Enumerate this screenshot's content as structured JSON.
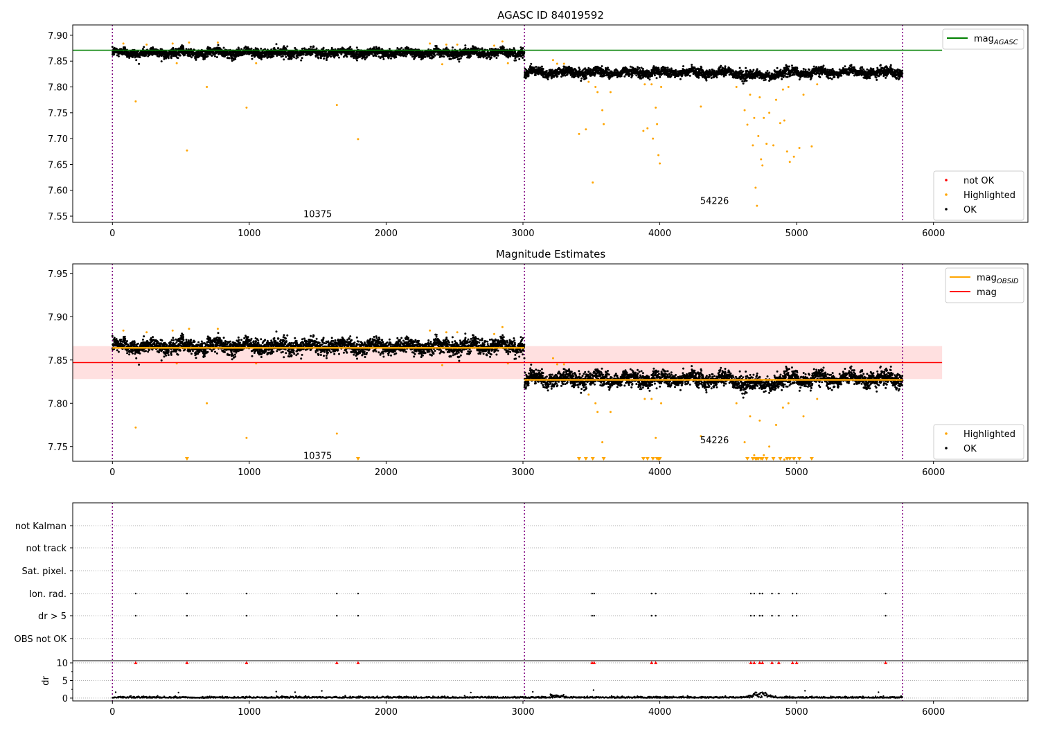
{
  "chart_data": [
    {
      "type": "scatter",
      "title": "AGASC ID 84019592",
      "xlabel": "",
      "ylabel": "",
      "xlim": [
        -290,
        6690
      ],
      "ylim": [
        7.538,
        7.92
      ],
      "xticks": [
        0,
        1000,
        2000,
        3000,
        4000,
        5000,
        6000
      ],
      "yticks": [
        7.55,
        7.6,
        7.65,
        7.7,
        7.75,
        7.8,
        7.85,
        7.9
      ],
      "obsid_boundaries": [
        0,
        3011,
        5774
      ],
      "obsid_labels": [
        {
          "text": "10375",
          "x": 1500,
          "y": 7.555
        },
        {
          "text": "54226",
          "x": 4400,
          "y": 7.58
        }
      ],
      "mag_agasc": 7.871,
      "mag_agasc_xrange": [
        -290,
        6063
      ],
      "legend_top": {
        "position": "top-right",
        "entries": [
          {
            "label": "mag",
            "sub": "AGASC",
            "color": "#008000"
          }
        ]
      },
      "legend_bottom": {
        "position": "bottom-right",
        "entries": [
          {
            "label": "not OK",
            "color": "#ff0000"
          },
          {
            "label": "Highlighted",
            "color": "#ffa500"
          },
          {
            "label": "OK",
            "color": "#000000"
          }
        ]
      }
    },
    {
      "type": "scatter",
      "title": "Magnitude Estimates",
      "xlim": [
        -290,
        6690
      ],
      "ylim": [
        7.733,
        7.961
      ],
      "xticks": [
        0,
        1000,
        2000,
        3000,
        4000,
        5000,
        6000
      ],
      "yticks": [
        7.75,
        7.8,
        7.85,
        7.9,
        7.95
      ],
      "obsid_labels": [
        {
          "text": "10375",
          "x": 1500,
          "y": 7.74
        },
        {
          "text": "54226",
          "x": 4400,
          "y": 7.758
        }
      ],
      "mag": 7.847,
      "mag_band": [
        7.828,
        7.866
      ],
      "mag_xrange": [
        -290,
        6063
      ],
      "mag_obsid": [
        {
          "x0": 0,
          "x1": 3011,
          "value": 7.864
        },
        {
          "x0": 3011,
          "x1": 5774,
          "value": 7.827
        }
      ],
      "legend_top": {
        "position": "top-right",
        "entries": [
          {
            "label": "mag",
            "sub": "OBSID",
            "color": "#ffa500"
          },
          {
            "label": "mag",
            "sub": "",
            "color": "#ff0000"
          }
        ]
      },
      "legend_bottom": {
        "position": "bottom-right",
        "entries": [
          {
            "label": "Highlighted",
            "color": "#ffa500"
          },
          {
            "label": "OK",
            "color": "#000000"
          }
        ]
      }
    },
    {
      "type": "scatter",
      "title": "",
      "flag_categories": [
        "not Kalman",
        "not track",
        "Sat. pixel.",
        "Ion. rad.",
        "dr > 5",
        "OBS not OK"
      ],
      "flagged_x": [
        170,
        545,
        980,
        1640,
        1795,
        3505,
        3520,
        3940,
        3970,
        4665,
        4690,
        4730,
        4750,
        4820,
        4870,
        4970,
        5000,
        5650
      ],
      "flags_set": [
        "Ion. rad.",
        "dr > 5"
      ],
      "dr_ylabel": "dr",
      "dr_ylim": [
        -0.8,
        10.6
      ],
      "dr_yticks": [
        0,
        5,
        10
      ],
      "xticks": [
        0,
        1000,
        2000,
        3000,
        4000,
        5000,
        6000
      ]
    }
  ],
  "series_model": {
    "segments": [
      {
        "x0": 0,
        "x1": 3011,
        "mean": 7.866,
        "sd": 0.006,
        "step": 1
      },
      {
        "x0": 3011,
        "x1": 5774,
        "mean": 7.828,
        "sd": 0.006,
        "step": 1,
        "dip": {
          "center": 4720,
          "width": 120,
          "depth": 0.008
        }
      }
    ],
    "highlighted": [
      [
        80,
        7.884
      ],
      [
        170,
        7.772
      ],
      [
        250,
        7.882
      ],
      [
        440,
        7.884
      ],
      [
        470,
        7.846
      ],
      [
        545,
        7.677
      ],
      [
        560,
        7.886
      ],
      [
        690,
        7.8
      ],
      [
        770,
        7.886
      ],
      [
        980,
        7.76
      ],
      [
        1050,
        7.846
      ],
      [
        1640,
        7.765
      ],
      [
        1795,
        7.699
      ],
      [
        2320,
        7.884
      ],
      [
        2410,
        7.844
      ],
      [
        2440,
        7.882
      ],
      [
        2520,
        7.882
      ],
      [
        2790,
        7.88
      ],
      [
        2850,
        7.888
      ],
      [
        2890,
        7.846
      ],
      [
        3220,
        7.852
      ],
      [
        3250,
        7.845
      ],
      [
        3300,
        7.845
      ],
      [
        3410,
        7.709
      ],
      [
        3460,
        7.718
      ],
      [
        3480,
        7.81
      ],
      [
        3510,
        7.615
      ],
      [
        3530,
        7.8
      ],
      [
        3545,
        7.79
      ],
      [
        3580,
        7.755
      ],
      [
        3590,
        7.728
      ],
      [
        3640,
        7.79
      ],
      [
        3880,
        7.715
      ],
      [
        3890,
        7.805
      ],
      [
        3910,
        7.72
      ],
      [
        3940,
        7.805
      ],
      [
        3950,
        7.7
      ],
      [
        3970,
        7.76
      ],
      [
        3980,
        7.728
      ],
      [
        3990,
        7.668
      ],
      [
        4000,
        7.652
      ],
      [
        4010,
        7.8
      ],
      [
        4300,
        7.762
      ],
      [
        4560,
        7.8
      ],
      [
        4620,
        7.755
      ],
      [
        4640,
        7.727
      ],
      [
        4660,
        7.785
      ],
      [
        4680,
        7.687
      ],
      [
        4690,
        7.74
      ],
      [
        4700,
        7.605
      ],
      [
        4710,
        7.57
      ],
      [
        4720,
        7.705
      ],
      [
        4730,
        7.78
      ],
      [
        4740,
        7.66
      ],
      [
        4750,
        7.648
      ],
      [
        4760,
        7.74
      ],
      [
        4780,
        7.69
      ],
      [
        4800,
        7.75
      ],
      [
        4830,
        7.687
      ],
      [
        4850,
        7.775
      ],
      [
        4880,
        7.73
      ],
      [
        4900,
        7.795
      ],
      [
        4910,
        7.735
      ],
      [
        4930,
        7.675
      ],
      [
        4940,
        7.8
      ],
      [
        4950,
        7.655
      ],
      [
        4980,
        7.665
      ],
      [
        5020,
        7.682
      ],
      [
        5050,
        7.785
      ],
      [
        5110,
        7.685
      ],
      [
        5150,
        7.805
      ]
    ]
  },
  "colors": {
    "ok": "#000000",
    "highlighted": "#ffa500",
    "not_ok": "#ff0000",
    "agasc": "#008000",
    "mag": "#ff0000",
    "band": "#ffe0e0",
    "boundary": "#800080",
    "grid": "#b0b0b0"
  }
}
